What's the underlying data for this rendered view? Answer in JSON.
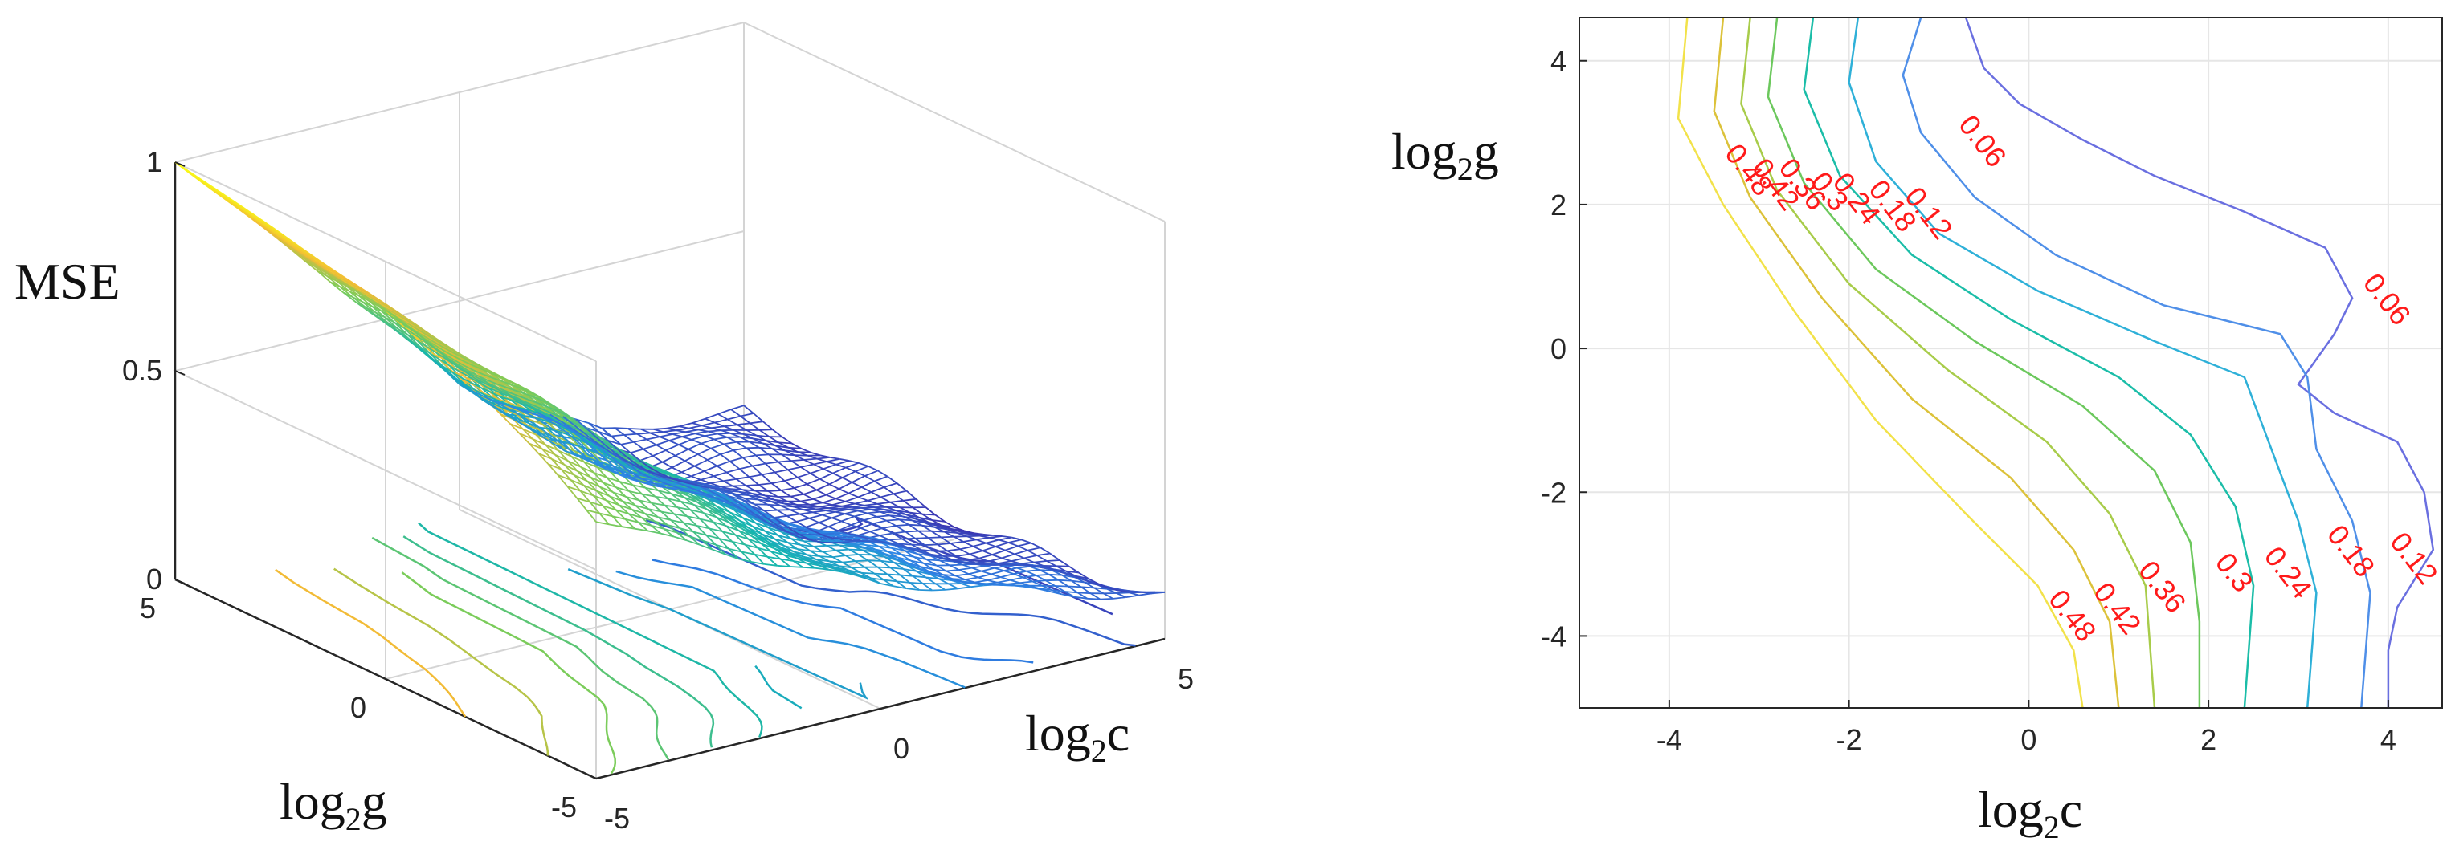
{
  "chart_data": [
    {
      "type": "surface",
      "subtype": "3d-mesh-with-contours",
      "title": "",
      "zlabel": "MSE",
      "xlabel": "log2c",
      "ylabel": "log2g",
      "labels": {
        "z": "MSE",
        "x_base": "log",
        "x_sub": "2",
        "x_var": "c",
        "y_base": "log",
        "y_sub": "2",
        "y_var": "g"
      },
      "xlim": [
        -5,
        5
      ],
      "ylim": [
        -5,
        5
      ],
      "zlim": [
        0,
        1
      ],
      "x_ticks": [
        "-5",
        "0",
        "5"
      ],
      "y_ticks": [
        "-5",
        "0",
        "5"
      ],
      "z_ticks": [
        "0",
        "0.5",
        "1"
      ],
      "grid": true,
      "colormap": [
        "#3d26a8",
        "#2d86e6",
        "#14b5b0",
        "#7bcc5a",
        "#f2bb36",
        "#f9fb14"
      ],
      "samples": {
        "x": [
          -5,
          -2.5,
          0,
          2.5,
          5
        ],
        "y": [
          -5,
          -2.5,
          0,
          2.5,
          5
        ],
        "z": [
          [
            0.62,
            0.45,
            0.3,
            0.2,
            0.1
          ],
          [
            0.78,
            0.55,
            0.32,
            0.16,
            0.06
          ],
          [
            0.88,
            0.6,
            0.3,
            0.1,
            0.05
          ],
          [
            0.95,
            0.62,
            0.26,
            0.08,
            0.06
          ],
          [
            1.0,
            0.66,
            0.3,
            0.1,
            0.07
          ]
        ]
      }
    },
    {
      "type": "contour",
      "title": "",
      "xlabel": "log2c",
      "ylabel": "log2g",
      "labels": {
        "x_base": "log",
        "x_sub": "2",
        "x_var": "c",
        "y_base": "log",
        "y_sub": "2",
        "y_var": "g"
      },
      "xlim": [
        -5,
        4.6
      ],
      "ylim": [
        -5,
        4.6
      ],
      "x_ticks": [
        "-4",
        "-2",
        "0",
        "2",
        "4"
      ],
      "y_ticks": [
        "-4",
        "-2",
        "0",
        "2",
        "4"
      ],
      "grid": true,
      "contours": [
        {
          "level": 0.06,
          "label": "0.06",
          "color": "#6a6fe0",
          "label_at": [
            [
              -0.6,
              2.8
            ],
            [
              3.9,
              0.6
            ],
            [
              4.9,
              -2.4
            ]
          ],
          "points": [
            [
              -0.7,
              4.6
            ],
            [
              -0.5,
              3.9
            ],
            [
              -0.1,
              3.4
            ],
            [
              0.6,
              2.9
            ],
            [
              1.4,
              2.4
            ],
            [
              2.4,
              1.9
            ],
            [
              3.3,
              1.4
            ],
            [
              3.6,
              0.7
            ],
            [
              3.4,
              0.2
            ],
            [
              3.0,
              -0.5
            ],
            [
              3.4,
              -0.9
            ],
            [
              4.1,
              -1.3
            ],
            [
              4.4,
              -2.0
            ],
            [
              4.5,
              -2.8
            ],
            [
              4.1,
              -3.6
            ],
            [
              4.0,
              -4.2
            ],
            [
              4.0,
              -5.0
            ]
          ]
        },
        {
          "level": 0.12,
          "label": "0.12",
          "color": "#4f8fe8",
          "label_at": [
            [
              -1.2,
              1.8
            ],
            [
              4.2,
              -3.0
            ]
          ],
          "points": [
            [
              -1.2,
              4.6
            ],
            [
              -1.4,
              3.8
            ],
            [
              -1.2,
              3.0
            ],
            [
              -0.6,
              2.1
            ],
            [
              0.3,
              1.3
            ],
            [
              1.5,
              0.6
            ],
            [
              2.8,
              0.2
            ],
            [
              3.1,
              -0.4
            ],
            [
              3.2,
              -1.4
            ],
            [
              3.6,
              -2.4
            ],
            [
              3.8,
              -3.4
            ],
            [
              3.7,
              -5.0
            ]
          ]
        },
        {
          "level": 0.18,
          "label": "0.18",
          "color": "#2eb0d8",
          "label_at": [
            [
              -1.6,
              1.9
            ],
            [
              3.5,
              -2.9
            ]
          ],
          "points": [
            [
              -1.9,
              4.6
            ],
            [
              -2.0,
              3.7
            ],
            [
              -1.7,
              2.6
            ],
            [
              -1.0,
              1.6
            ],
            [
              0.1,
              0.8
            ],
            [
              1.4,
              0.1
            ],
            [
              2.4,
              -0.4
            ],
            [
              2.7,
              -1.4
            ],
            [
              3.0,
              -2.4
            ],
            [
              3.2,
              -3.4
            ],
            [
              3.1,
              -5.0
            ]
          ]
        },
        {
          "level": 0.24,
          "label": "0.24",
          "color": "#1bbda8",
          "label_at": [
            [
              -2.0,
              2.0
            ],
            [
              2.8,
              -3.2
            ]
          ],
          "points": [
            [
              -2.4,
              4.6
            ],
            [
              -2.5,
              3.6
            ],
            [
              -2.1,
              2.4
            ],
            [
              -1.3,
              1.3
            ],
            [
              -0.2,
              0.4
            ],
            [
              1.0,
              -0.4
            ],
            [
              1.8,
              -1.2
            ],
            [
              2.3,
              -2.2
            ],
            [
              2.5,
              -3.3
            ],
            [
              2.4,
              -5.0
            ]
          ]
        },
        {
          "level": 0.3,
          "label": "0.3",
          "color": "#6cc85d",
          "label_at": [
            [
              -2.3,
              2.1
            ],
            [
              2.2,
              -3.2
            ]
          ],
          "points": [
            [
              -2.8,
              4.6
            ],
            [
              -2.9,
              3.5
            ],
            [
              -2.5,
              2.3
            ],
            [
              -1.7,
              1.1
            ],
            [
              -0.6,
              0.1
            ],
            [
              0.6,
              -0.8
            ],
            [
              1.4,
              -1.7
            ],
            [
              1.8,
              -2.7
            ],
            [
              1.9,
              -3.8
            ],
            [
              1.9,
              -5.0
            ]
          ]
        },
        {
          "level": 0.36,
          "label": "0.36",
          "color": "#a8cc4a",
          "label_at": [
            [
              -2.6,
              2.2
            ],
            [
              1.4,
              -3.4
            ]
          ],
          "points": [
            [
              -3.1,
              4.6
            ],
            [
              -3.2,
              3.4
            ],
            [
              -2.8,
              2.2
            ],
            [
              -2.0,
              0.9
            ],
            [
              -0.9,
              -0.3
            ],
            [
              0.2,
              -1.3
            ],
            [
              0.9,
              -2.3
            ],
            [
              1.3,
              -3.3
            ],
            [
              1.4,
              -5.0
            ]
          ]
        },
        {
          "level": 0.42,
          "label": "0.42",
          "color": "#dcc23a",
          "label_at": [
            [
              -2.9,
              2.2
            ],
            [
              0.9,
              -3.7
            ]
          ],
          "points": [
            [
              -3.4,
              4.6
            ],
            [
              -3.5,
              3.3
            ],
            [
              -3.1,
              2.1
            ],
            [
              -2.3,
              0.7
            ],
            [
              -1.3,
              -0.7
            ],
            [
              -0.2,
              -1.8
            ],
            [
              0.5,
              -2.8
            ],
            [
              0.9,
              -3.8
            ],
            [
              1.0,
              -5.0
            ]
          ]
        },
        {
          "level": 0.48,
          "label": "0.48",
          "color": "#f2e24a",
          "label_at": [
            [
              -3.2,
              2.4
            ],
            [
              0.4,
              -3.8
            ]
          ],
          "points": [
            [
              -3.8,
              4.6
            ],
            [
              -3.9,
              3.2
            ],
            [
              -3.4,
              2.0
            ],
            [
              -2.6,
              0.5
            ],
            [
              -1.7,
              -1.0
            ],
            [
              -0.7,
              -2.3
            ],
            [
              0.1,
              -3.3
            ],
            [
              0.5,
              -4.2
            ],
            [
              0.6,
              -5.0
            ]
          ]
        }
      ]
    }
  ]
}
